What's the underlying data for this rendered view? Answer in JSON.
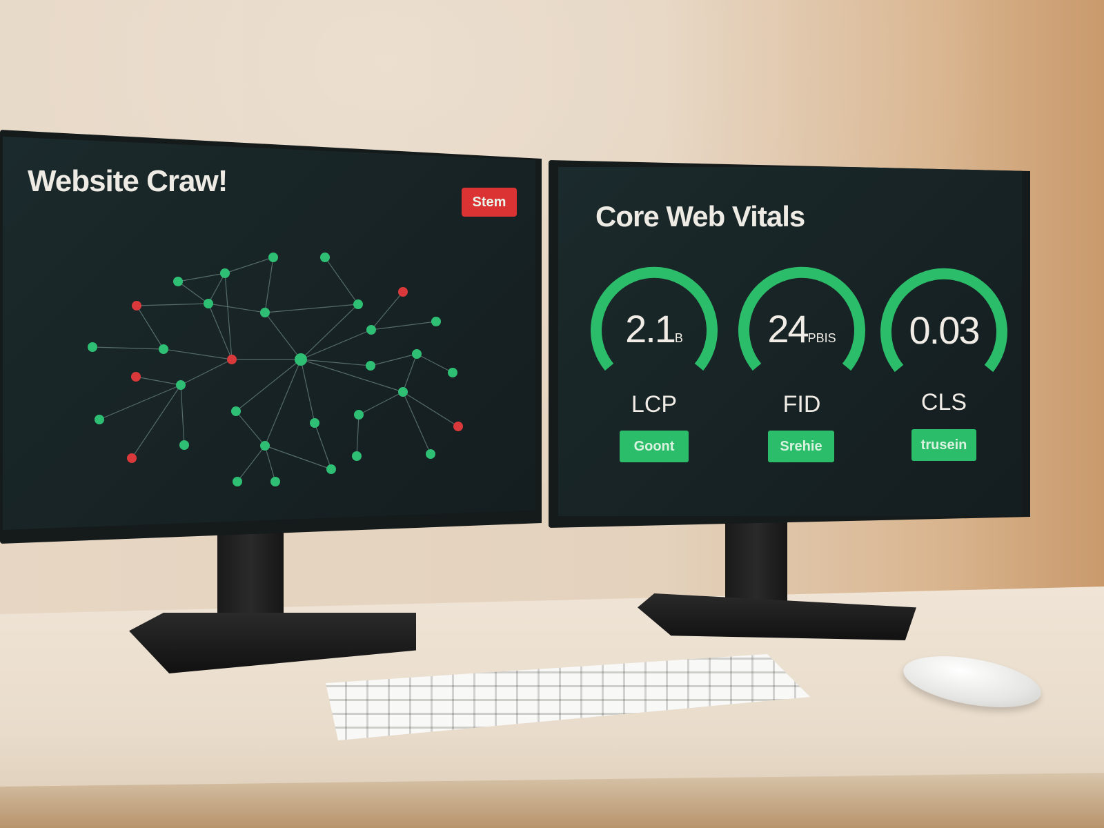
{
  "left_screen": {
    "title": "Website Craw!",
    "action_button": "Stem",
    "graph": {
      "node_colors": {
        "ok": "#2fbf74",
        "error": "#d9393a"
      },
      "node_status": [
        "ok",
        "ok",
        "ok",
        "ok",
        "error",
        "ok",
        "ok",
        "ok",
        "error",
        "ok",
        "ok",
        "ok",
        "ok",
        "error",
        "ok",
        "ok",
        "ok",
        "ok",
        "error",
        "ok",
        "ok",
        "ok",
        "ok",
        "ok",
        "ok",
        "error",
        "ok",
        "ok",
        "ok",
        "error",
        "ok",
        "ok",
        "ok",
        "ok"
      ]
    }
  },
  "right_screen": {
    "title": "Core Web Vitals",
    "accent": "#2cbd6a",
    "metrics": [
      {
        "value": "2.1",
        "unit": "B",
        "label": "LCP",
        "status": "Goont"
      },
      {
        "value": "24",
        "unit": "PBIS",
        "label": "FID",
        "status": "Srehie"
      },
      {
        "value": "0.03",
        "unit": "",
        "label": "CLS",
        "status": "trusein"
      }
    ]
  }
}
